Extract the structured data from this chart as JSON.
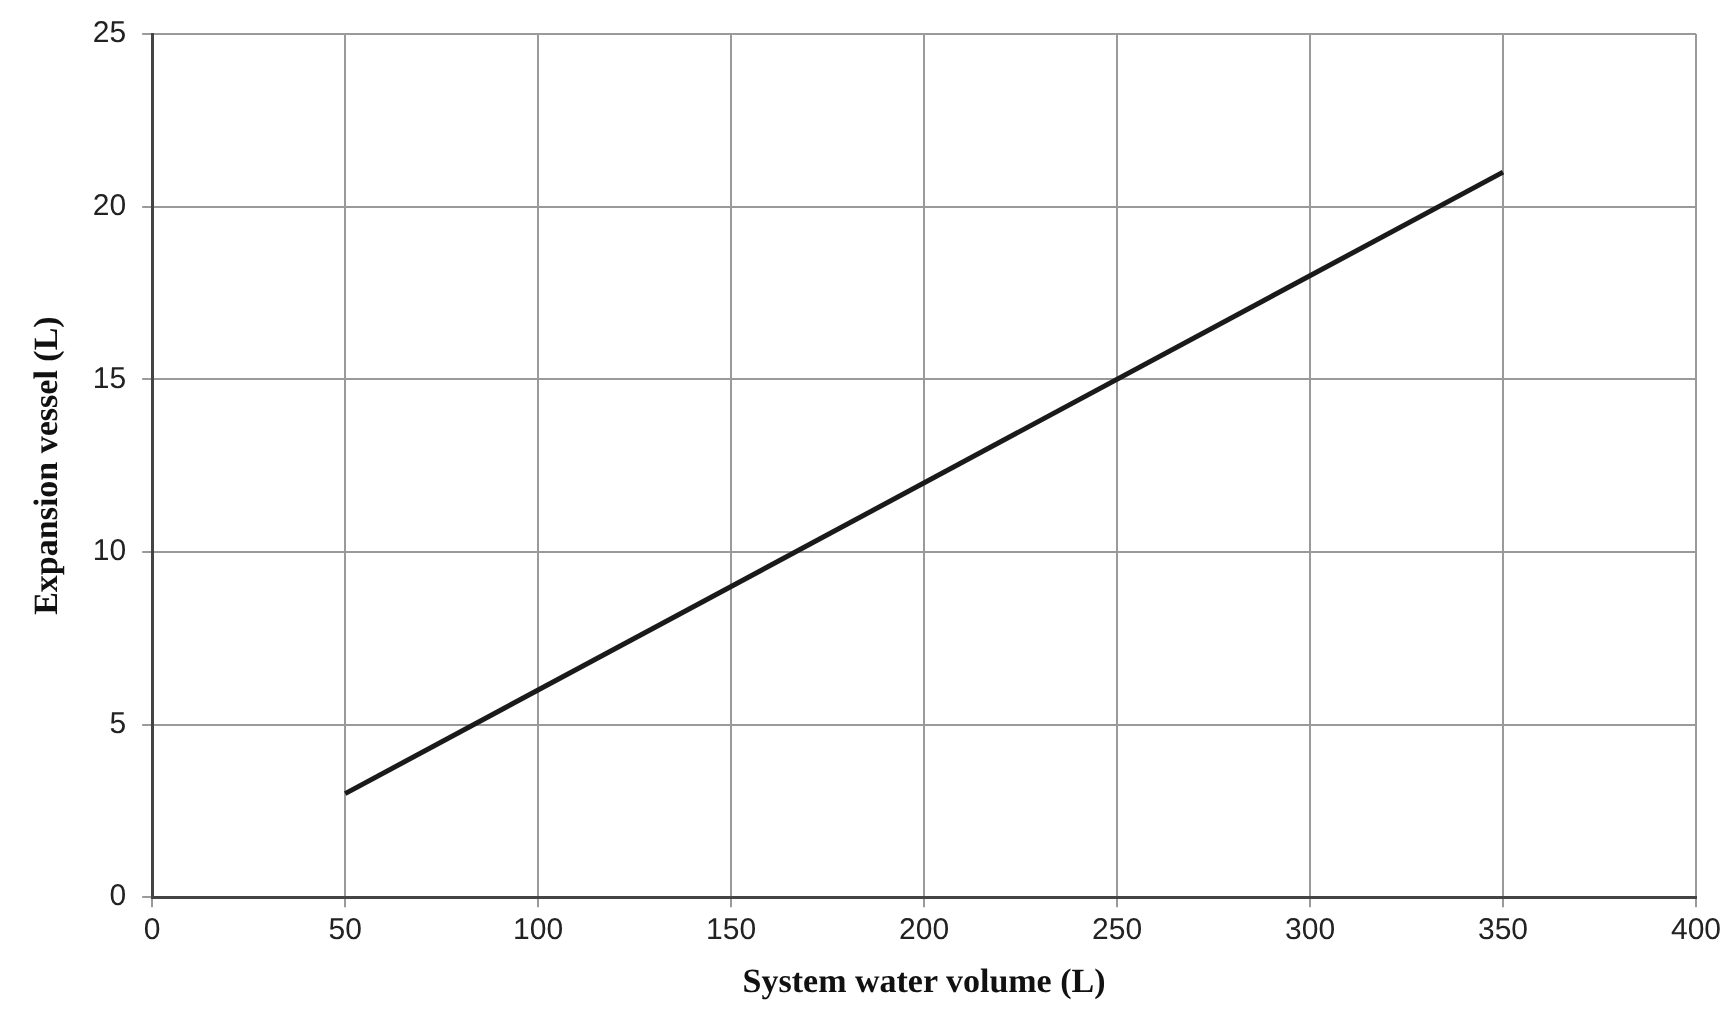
{
  "chart_data": {
    "type": "line",
    "xlabel": "System water volume (L)",
    "ylabel": "Expansion vessel (L)",
    "x": [
      50,
      350
    ],
    "series": [
      {
        "color": "#1a1a1a",
        "values": [
          3,
          21
        ]
      }
    ],
    "xlim": [
      0,
      400
    ],
    "xticks": [
      0,
      50,
      100,
      150,
      200,
      250,
      300,
      350,
      400
    ],
    "ylim": [
      0,
      25
    ],
    "yticks": [
      0,
      5,
      10,
      15,
      20,
      25
    ],
    "grid": true,
    "legend": false,
    "marker": "none",
    "line_style": "solid"
  }
}
